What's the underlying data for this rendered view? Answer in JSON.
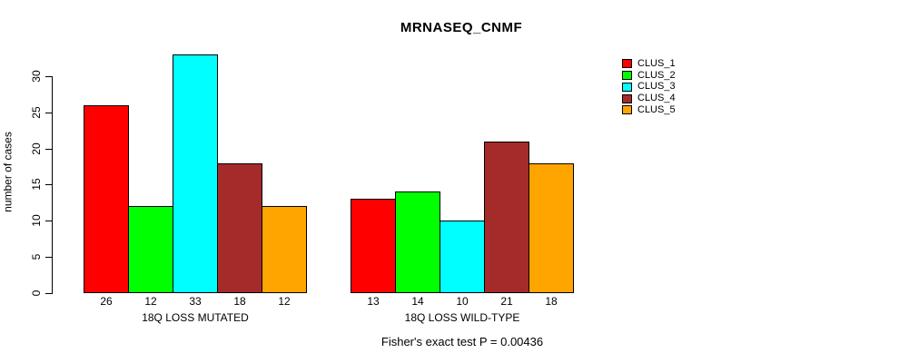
{
  "header": {
    "note": "static R-style grouped barplot figure"
  },
  "chart_data": {
    "type": "bar",
    "title": "MRNASEQ_CNMF",
    "ylabel": "number of cases",
    "xlabel": "",
    "ylim": [
      0,
      33
    ],
    "yticks": [
      0,
      5,
      10,
      15,
      20,
      25,
      30
    ],
    "grid": false,
    "legend_position": "top-right",
    "categories": [
      "18Q LOSS MUTATED",
      "18Q LOSS WILD-TYPE"
    ],
    "series": [
      {
        "name": "CLUS_1",
        "color": "#FF0000",
        "values": [
          26,
          13
        ]
      },
      {
        "name": "CLUS_2",
        "color": "#00FF00",
        "values": [
          12,
          14
        ]
      },
      {
        "name": "CLUS_3",
        "color": "#00FFFF",
        "values": [
          33,
          10
        ]
      },
      {
        "name": "CLUS_4",
        "color": "#A52A2A",
        "values": [
          18,
          21
        ]
      },
      {
        "name": "CLUS_5",
        "color": "#FFA500",
        "values": [
          12,
          18
        ]
      }
    ],
    "bar_value_labels": {
      "18Q LOSS MUTATED": [
        26,
        12,
        33,
        18,
        12
      ],
      "18Q LOSS WILD-TYPE": [
        13,
        14,
        10,
        21,
        18
      ]
    },
    "footnote": "Fisher's exact test P = 0.00436"
  },
  "colors": {
    "background": "#FFFFFF",
    "axis": "#000000",
    "text": "#000000"
  }
}
